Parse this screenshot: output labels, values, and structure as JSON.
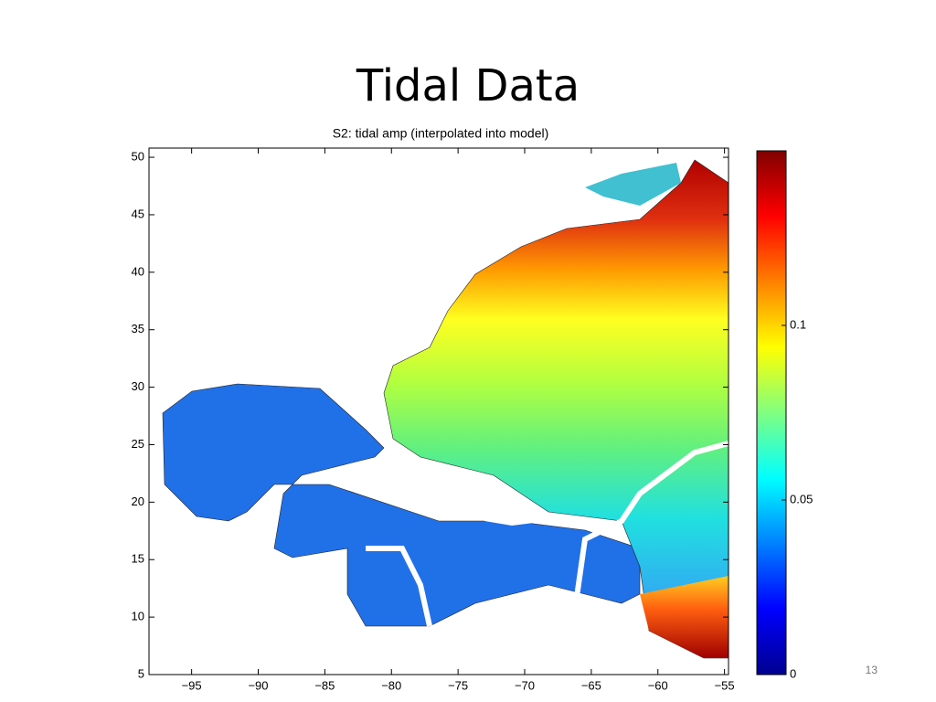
{
  "slide": {
    "title": "Tidal Data",
    "page_number": 13
  },
  "chart_data": {
    "type": "contour",
    "title": "S2: tidal amp (interpolated into model)",
    "xlim": [
      -98.2,
      -54.7
    ],
    "ylim": [
      5,
      50.8
    ],
    "xticks": [
      {
        "value": -95,
        "label": "−95"
      },
      {
        "value": -90,
        "label": "−90"
      },
      {
        "value": -85,
        "label": "−85"
      },
      {
        "value": -80,
        "label": "−80"
      },
      {
        "value": -75,
        "label": "−75"
      },
      {
        "value": -70,
        "label": "−70"
      },
      {
        "value": -65,
        "label": "−65"
      },
      {
        "value": -60,
        "label": "−60"
      },
      {
        "value": -55,
        "label": "−55"
      }
    ],
    "yticks": [
      5,
      10,
      15,
      20,
      25,
      30,
      35,
      40,
      45,
      50
    ],
    "colorbar": {
      "colormap": "jet",
      "clim": [
        0,
        0.15
      ],
      "ticks": [
        0,
        0.05,
        0.1
      ]
    }
  }
}
